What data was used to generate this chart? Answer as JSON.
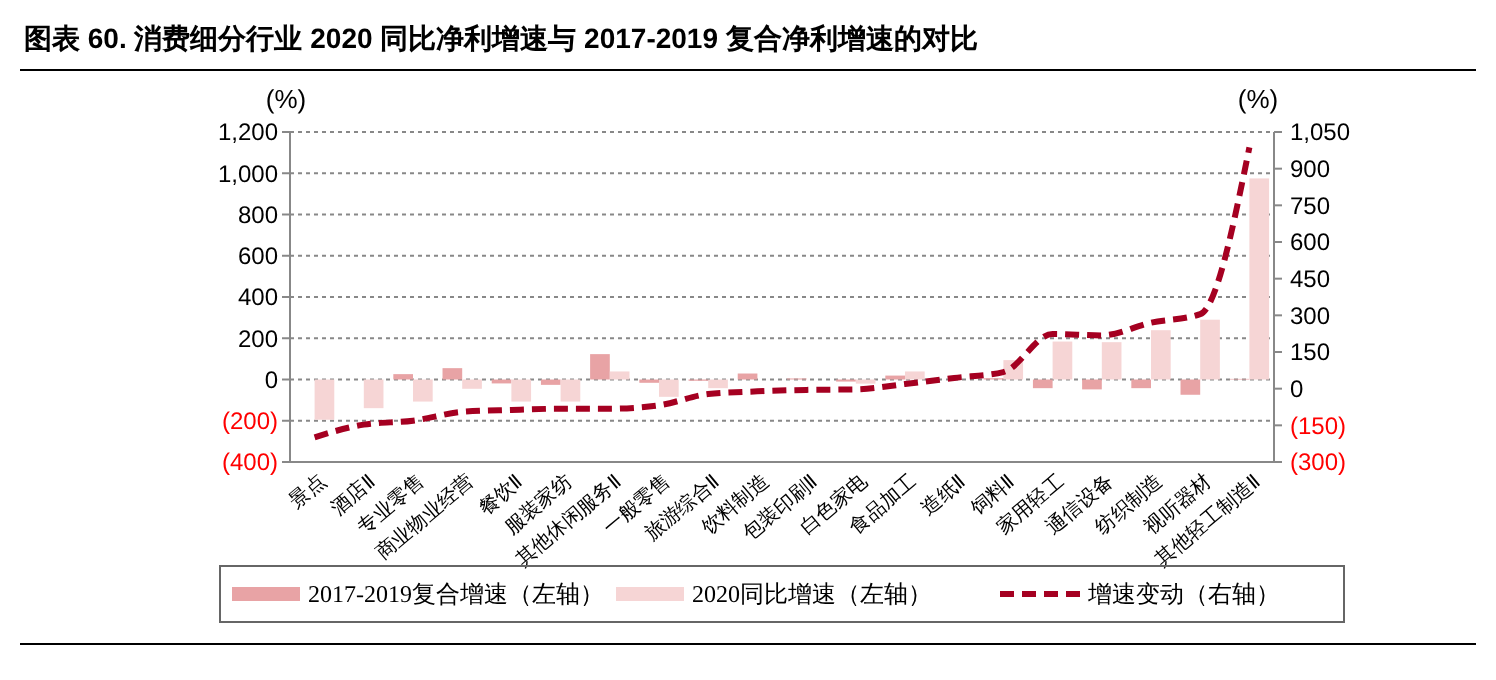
{
  "chart_data": {
    "type": "bar",
    "title": "图表 60. 消费细分行业 2020 同比净利增速与 2017-2019 复合净利增速的对比",
    "ylabel": "(%)",
    "y2label": "(%)",
    "categories": [
      "景点",
      "酒店Ⅱ",
      "专业零售",
      "商业物业经营",
      "餐饮Ⅱ",
      "服装家纺",
      "其他休闲服务Ⅱ",
      "一般零售",
      "旅游综合Ⅱ",
      "饮料制造",
      "包装印刷Ⅱ",
      "白色家电",
      "食品加工",
      "造纸Ⅱ",
      "饲料Ⅱ",
      "家用轻工",
      "通信设备",
      "纺织制造",
      "视听器材",
      "其他轻工制造Ⅱ"
    ],
    "series": [
      {
        "name": "2017-2019复合增速（左轴）",
        "color": "#e8a3a5",
        "values": [
          0,
          0,
          26,
          55,
          -19,
          -26,
          123,
          -16,
          -6,
          29,
          5,
          -10,
          19,
          null,
          6,
          -42,
          -48,
          -42,
          -74,
          3
        ]
      },
      {
        "name": "2020同比增速（左轴）",
        "color": "#f6d5d5",
        "values": [
          -195,
          -139,
          -107,
          -45,
          -107,
          -107,
          39,
          -84,
          -42,
          null,
          null,
          -20,
          39,
          null,
          94,
          184,
          181,
          239,
          290,
          975
        ]
      },
      {
        "name": "增速变动（右轴）",
        "type": "line",
        "axis": "y2",
        "color": "#a50021",
        "line_style": "dashed",
        "values": [
          -199,
          -147,
          -131,
          -95,
          -87,
          -82,
          -82,
          -68,
          -22,
          -11,
          -5,
          -3,
          19,
          44,
          68,
          224,
          218,
          270,
          305,
          987
        ]
      }
    ],
    "ylim": [
      -400,
      1200
    ],
    "yticks": [
      {
        "value": -400,
        "label": "(400)"
      },
      {
        "value": -200,
        "label": "(200)"
      },
      0,
      200,
      400,
      600,
      800,
      {
        "value": 1000,
        "label": "1,000"
      },
      {
        "value": 1200,
        "label": "1,200"
      }
    ],
    "y2lim": [
      -300,
      1050
    ],
    "y2ticks": [
      {
        "value": -300,
        "label": "(300)"
      },
      {
        "value": -150,
        "label": "(150)"
      },
      0,
      150,
      300,
      450,
      600,
      750,
      900,
      {
        "value": 1050,
        "label": "1,050"
      }
    ],
    "grid": "y",
    "legend": "bottom"
  }
}
